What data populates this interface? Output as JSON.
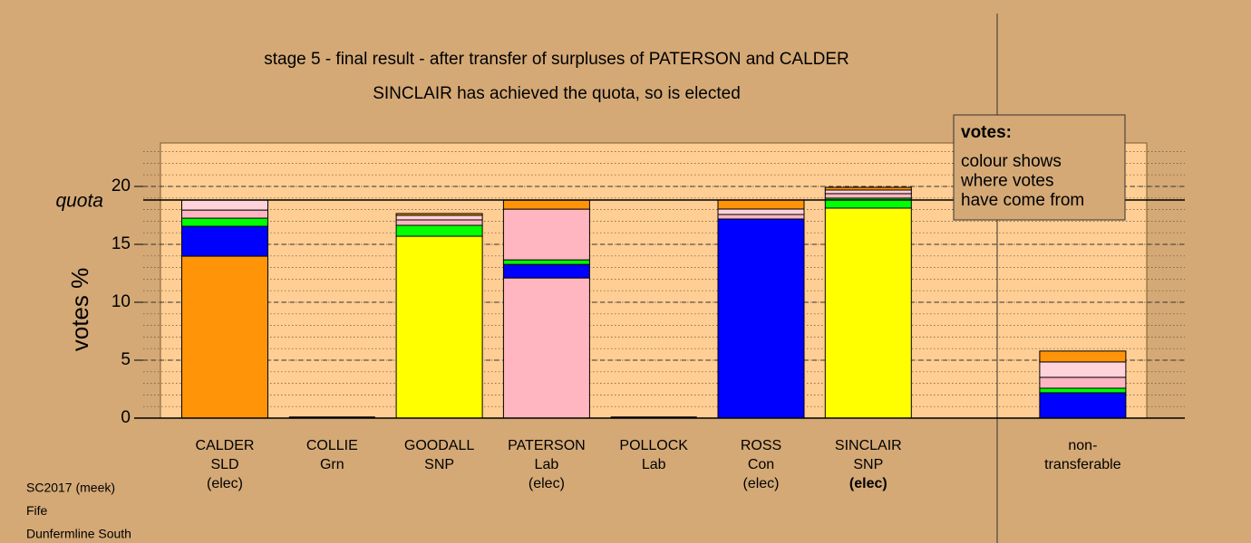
{
  "chart_data": {
    "type": "stacked-bar",
    "title": "stage 5 - final result - after transfer of surpluses of PATERSON and CALDER",
    "subtitle": "SINCLAIR has achieved the quota, so is elected",
    "y_label": "votes %",
    "quota": {
      "label": "quota",
      "value": 18.83
    },
    "ylim": [
      0,
      23.75
    ],
    "yticks": [
      0,
      5,
      10,
      15,
      20
    ],
    "minor_grid_step": 1,
    "grid": true,
    "categories": [
      [
        "CALDER",
        "SLD",
        "(elec)"
      ],
      [
        "COLLIE",
        "Grn"
      ],
      [
        "GOODALL",
        "SNP"
      ],
      [
        "PATERSON",
        "Lab",
        "(elec)"
      ],
      [
        "POLLOCK",
        "Lab"
      ],
      [
        "ROSS",
        "Con",
        "(elec)"
      ],
      [
        "SINCLAIR",
        "SNP",
        "(elec)"
      ],
      null,
      [
        "non-",
        "transferable"
      ]
    ],
    "bold_label_index": 6,
    "bars": [
      {
        "segments": [
          {
            "color": "#ff9408",
            "value": 13.98
          },
          {
            "color": "#0000ff",
            "value": 2.58
          },
          {
            "color": "#00ff00",
            "value": 0.7
          },
          {
            "color": "#ffb6c1",
            "value": 0.7
          },
          {
            "color": "#ffd3da",
            "value": 0.86
          }
        ]
      },
      {
        "segments": []
      },
      {
        "segments": [
          {
            "color": "#ffff00",
            "value": 15.7
          },
          {
            "color": "#00ff00",
            "value": 0.94
          },
          {
            "color": "#ffb6c1",
            "value": 0.47
          },
          {
            "color": "#ffd3da",
            "value": 0.39
          },
          {
            "color": "#ff9408",
            "value": 0.16
          }
        ]
      },
      {
        "segments": [
          {
            "color": "#ffb6c1",
            "value": 12.1
          },
          {
            "color": "#0000ff",
            "value": 1.17
          },
          {
            "color": "#00ff00",
            "value": 0.39
          },
          {
            "color": "#ffb6c1",
            "value": 4.38
          },
          {
            "color": "#ff9408",
            "value": 0.78
          }
        ]
      },
      {
        "segments": []
      },
      {
        "segments": [
          {
            "color": "#0000ff",
            "value": 17.19
          },
          {
            "color": "#ffb6c1",
            "value": 0.39
          },
          {
            "color": "#ffd3da",
            "value": 0.47
          },
          {
            "color": "#ff9408",
            "value": 0.78
          }
        ]
      },
      {
        "segments": [
          {
            "color": "#ffff00",
            "value": 18.13
          },
          {
            "color": "#00ff00",
            "value": 0.86
          },
          {
            "color": "#ffb6c1",
            "value": 0.39
          },
          {
            "color": "#ffd3da",
            "value": 0.31
          },
          {
            "color": "#ff9408",
            "value": 0.23
          }
        ]
      },
      {
        "segments": []
      },
      {
        "segments": [
          {
            "color": "#0000ff",
            "value": 2.19
          },
          {
            "color": "#00ff00",
            "value": 0.39
          },
          {
            "color": "#ffb6c1",
            "value": 0.94
          },
          {
            "color": "#ffd3da",
            "value": 1.33
          },
          {
            "color": "#ff9408",
            "value": 0.94
          }
        ]
      }
    ],
    "info_box": {
      "title": "votes:",
      "lines": [
        "colour shows",
        "where votes",
        "have come from"
      ]
    },
    "footnotes": [
      "SC2017 (meek)",
      "Fife",
      "Dunfermline South"
    ]
  }
}
